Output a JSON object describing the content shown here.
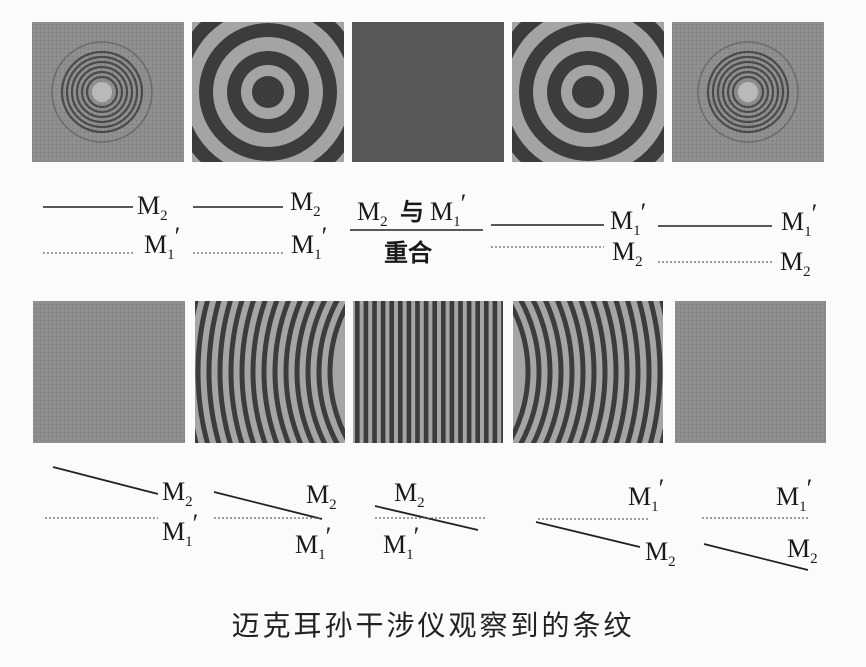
{
  "caption": "迈克耳孙干涉仪观察到的条纹",
  "mirror_labels": {
    "m2": "M",
    "m2_sub": "2",
    "m1p": "M",
    "m1p_sub": "1",
    "prime": "′",
    "coincide_top": "与",
    "coincide_bottom": "重合"
  },
  "colors": {
    "panel_gray": "#8c8c8c",
    "panel_dark": "#585858",
    "fringe_dark": "#3c3c3c",
    "fringe_light": "#a4a4a4"
  }
}
